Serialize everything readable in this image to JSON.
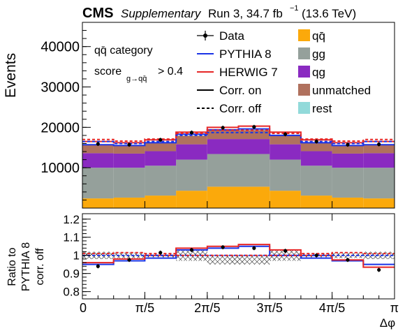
{
  "header": {
    "cms": "CMS",
    "supplementary": "Supplementary",
    "run": "Run 3, 34.7 fb",
    "lumi_sup": "−1",
    "energy": "(13.6 TeV)"
  },
  "annotations": {
    "category": "qq̄ category",
    "score_label": "score",
    "score_sub": "g→qq̄",
    "score_cut": "> 0.4"
  },
  "legend": [
    {
      "label": "Data",
      "style": "data"
    },
    {
      "label": "PYTHIA 8",
      "style": "line",
      "color": "#1a33e6"
    },
    {
      "label": "HERWIG 7",
      "style": "line",
      "color": "#e62626"
    },
    {
      "label": "Corr. on",
      "style": "line",
      "color": "#000000"
    },
    {
      "label": "Corr. off",
      "style": "dash",
      "color": "#000000"
    },
    {
      "label": "qq̄",
      "style": "box",
      "color": "#fba90b"
    },
    {
      "label": "gg",
      "style": "box",
      "color": "#95a09b"
    },
    {
      "label": "qg",
      "style": "box",
      "color": "#8a2ac1"
    },
    {
      "label": "unmatched",
      "style": "box",
      "color": "#b0715e"
    },
    {
      "label": "rest",
      "style": "box",
      "color": "#92dada"
    }
  ],
  "chart_data": [
    {
      "type": "area",
      "ylabel": "Events",
      "xlim": [
        0,
        3.14159
      ],
      "ylim": [
        0,
        46000
      ],
      "yticks": [
        "10000",
        "20000",
        "30000",
        "40000"
      ],
      "ytick_values": [
        10000,
        20000,
        30000,
        40000
      ],
      "bin_edges": [
        0,
        0.31416,
        0.62832,
        0.94248,
        1.25664,
        1.5708,
        1.88496,
        2.19911,
        2.51327,
        2.82743,
        3.14159
      ],
      "stack": [
        {
          "name": "qq̄",
          "color": "#fba90b",
          "values": [
            2400,
            2600,
            3100,
            4300,
            5300,
            5300,
            4300,
            3100,
            2600,
            2400
          ]
        },
        {
          "name": "gg",
          "color": "#95a09b",
          "values": [
            7600,
            7400,
            7400,
            7700,
            8100,
            8100,
            7700,
            7400,
            7400,
            7600
          ]
        },
        {
          "name": "qg",
          "color": "#8a2ac1",
          "values": [
            3600,
            3500,
            3600,
            3800,
            3700,
            3700,
            3800,
            3600,
            3500,
            3600
          ]
        },
        {
          "name": "unmatched",
          "color": "#b0715e",
          "values": [
            2000,
            1900,
            2000,
            2100,
            2200,
            2200,
            2100,
            2000,
            1900,
            2000
          ]
        },
        {
          "name": "rest",
          "color": "#92dada",
          "values": [
            100,
            100,
            100,
            100,
            100,
            100,
            100,
            100,
            100,
            100
          ]
        }
      ],
      "series": [
        {
          "name": "PYTHIA 8",
          "style": "corr-on",
          "color": "#1a33e6",
          "values": [
            15700,
            15500,
            16200,
            18300,
            19400,
            19600,
            18000,
            16200,
            15500,
            15700
          ]
        },
        {
          "name": "HERWIG 7",
          "style": "corr-on",
          "color": "#e62626",
          "values": [
            16500,
            16200,
            16900,
            18800,
            20000,
            20300,
            18800,
            16900,
            16200,
            16500
          ]
        },
        {
          "name": "PYTHIA 8",
          "style": "corr-off",
          "color": "#1a33e6",
          "values": [
            16500,
            16000,
            16500,
            18000,
            18700,
            18700,
            18000,
            16500,
            16000,
            16500
          ]
        },
        {
          "name": "HERWIG 7",
          "style": "corr-off",
          "color": "#e62626",
          "values": [
            17000,
            16600,
            17100,
            18500,
            19300,
            19300,
            18500,
            17100,
            16600,
            17000
          ]
        }
      ],
      "data": {
        "name": "Data",
        "values": [
          15900,
          15700,
          16900,
          18700,
          19900,
          20100,
          18300,
          16500,
          15700,
          15800
        ]
      }
    },
    {
      "type": "line",
      "ylabel": "Ratio to PYTHIA 8 corr. off",
      "xlabel": "Δφ",
      "xlim": [
        0,
        3.14159
      ],
      "ylim": [
        0.76,
        1.23
      ],
      "yticks": [
        "0.8",
        "0.9",
        "1",
        "1.1",
        "1.2"
      ],
      "ytick_values": [
        0.8,
        0.9,
        1.0,
        1.1,
        1.2
      ],
      "xticks": [
        "0",
        "π/5",
        "2π/5",
        "3π/5",
        "4π/5",
        "π"
      ],
      "xtick_values": [
        0,
        0.62832,
        1.25664,
        1.88496,
        2.51327,
        3.14159
      ],
      "bin_edges": [
        0,
        0.31416,
        0.62832,
        0.94248,
        1.25664,
        1.5708,
        1.88496,
        2.19911,
        2.51327,
        2.82743,
        3.14159
      ],
      "unc_band": {
        "lo": [
          0.98,
          0.985,
          0.99,
          0.97,
          0.95,
          0.95,
          0.97,
          0.99,
          0.985,
          0.98
        ],
        "hi": [
          1.02,
          1.015,
          1.01,
          1.03,
          1.0,
          1.0,
          1.03,
          1.01,
          1.015,
          1.02
        ]
      },
      "series": [
        {
          "name": "PYTHIA 8",
          "style": "corr-on",
          "color": "#1a33e6",
          "values": [
            0.95,
            0.97,
            0.985,
            1.03,
            1.04,
            1.05,
            1.0,
            0.985,
            0.97,
            0.95
          ]
        },
        {
          "name": "HERWIG 7",
          "style": "corr-on",
          "color": "#e62626",
          "values": [
            0.96,
            0.98,
            1.0,
            1.04,
            1.05,
            1.06,
            1.03,
            1.0,
            0.975,
            0.935
          ]
        },
        {
          "name": "PYTHIA 8",
          "style": "corr-off",
          "color": "#1a33e6",
          "values": [
            1.0,
            1.0,
            1.0,
            1.0,
            1.0,
            1.0,
            1.0,
            1.0,
            1.0,
            1.0
          ]
        },
        {
          "name": "HERWIG 7",
          "style": "corr-off",
          "color": "#e62626",
          "values": [
            1.01,
            1.015,
            1.01,
            1.0,
            1.0,
            1.0,
            1.0,
            1.01,
            1.015,
            1.01
          ]
        }
      ],
      "data": {
        "name": "Data",
        "values": [
          0.94,
          0.975,
          1.015,
          1.03,
          1.045,
          1.04,
          1.025,
          1.0,
          0.975,
          0.92
        ]
      }
    }
  ]
}
